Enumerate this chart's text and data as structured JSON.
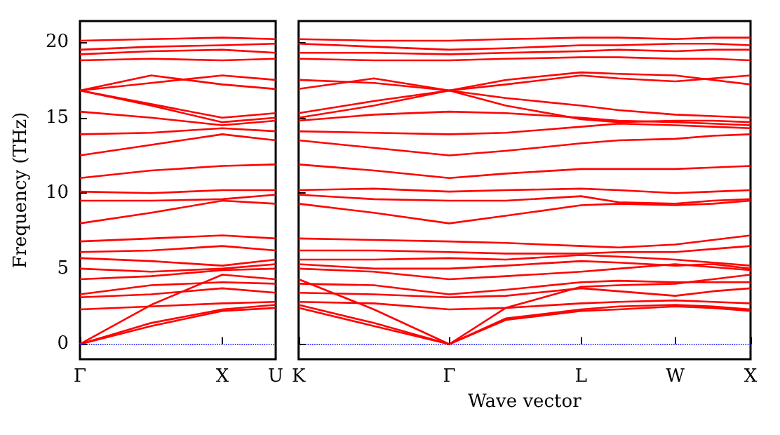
{
  "chart_data": [
    {
      "type": "line",
      "ylabel": "Frequency (THz)",
      "categories": [
        "Γ",
        null,
        null,
        null,
        null,
        null,
        null,
        null,
        "X",
        null,
        null,
        "U"
      ],
      "ylim": [
        -1,
        21.4
      ],
      "yticks": [
        0,
        5,
        10,
        15,
        20
      ],
      "grid": false,
      "marker": "none",
      "line_style": "solid",
      "ref_lines": [
        {
          "axis": "y",
          "value": 0,
          "color": "#0000ff",
          "line_style": "dotted"
        }
      ],
      "series": [
        {
          "color": "#ff0000",
          "values": [
            0,
            null,
            null,
            null,
            1.2,
            null,
            null,
            null,
            2.2,
            null,
            null,
            2.4
          ]
        },
        {
          "color": "#ff0000",
          "values": [
            0,
            null,
            null,
            null,
            1.4,
            null,
            null,
            null,
            2.3,
            null,
            null,
            2.6
          ]
        },
        {
          "color": "#ff0000",
          "values": [
            0,
            null,
            null,
            null,
            2.6,
            null,
            null,
            null,
            4.6,
            null,
            null,
            4.3
          ]
        },
        {
          "color": "#ff0000",
          "values": [
            2.3,
            null,
            null,
            null,
            2.5,
            null,
            null,
            null,
            2.7,
            null,
            null,
            2.8
          ]
        },
        {
          "color": "#ff0000",
          "values": [
            3.1,
            null,
            null,
            null,
            3.3,
            null,
            null,
            null,
            3.7,
            null,
            null,
            3.4
          ]
        },
        {
          "color": "#ff0000",
          "values": [
            3.3,
            null,
            null,
            null,
            3.9,
            null,
            null,
            null,
            4.1,
            null,
            null,
            4.0
          ]
        },
        {
          "color": "#ff0000",
          "values": [
            4.3,
            null,
            null,
            null,
            4.5,
            null,
            null,
            null,
            4.9,
            null,
            null,
            5.0
          ]
        },
        {
          "color": "#ff0000",
          "values": [
            5.0,
            null,
            null,
            null,
            4.8,
            null,
            null,
            null,
            5.0,
            null,
            null,
            5.3
          ]
        },
        {
          "color": "#ff0000",
          "values": [
            5.7,
            null,
            null,
            null,
            5.5,
            null,
            null,
            null,
            5.2,
            null,
            null,
            5.6
          ]
        },
        {
          "color": "#ff0000",
          "values": [
            6.1,
            null,
            null,
            null,
            6.2,
            null,
            null,
            null,
            6.5,
            null,
            null,
            6.2
          ]
        },
        {
          "color": "#ff0000",
          "values": [
            6.8,
            null,
            null,
            null,
            7.0,
            null,
            null,
            null,
            7.2,
            null,
            null,
            7.0
          ]
        },
        {
          "color": "#ff0000",
          "values": [
            8.0,
            null,
            null,
            null,
            8.7,
            null,
            null,
            null,
            9.5,
            null,
            null,
            9.3
          ]
        },
        {
          "color": "#ff0000",
          "values": [
            9.5,
            null,
            null,
            null,
            9.5,
            null,
            null,
            null,
            9.6,
            null,
            null,
            9.9
          ]
        },
        {
          "color": "#ff0000",
          "values": [
            10.1,
            null,
            null,
            null,
            10.0,
            null,
            null,
            null,
            10.2,
            null,
            null,
            10.2
          ]
        },
        {
          "color": "#ff0000",
          "values": [
            11.0,
            null,
            null,
            null,
            11.5,
            null,
            null,
            null,
            11.8,
            null,
            null,
            11.9
          ]
        },
        {
          "color": "#ff0000",
          "values": [
            12.5,
            null,
            null,
            null,
            13.2,
            null,
            null,
            null,
            13.9,
            null,
            null,
            13.5
          ]
        },
        {
          "color": "#ff0000",
          "values": [
            13.9,
            null,
            null,
            null,
            14.0,
            null,
            null,
            null,
            14.3,
            null,
            null,
            14.1
          ]
        },
        {
          "color": "#ff0000",
          "values": [
            15.4,
            null,
            null,
            null,
            15.0,
            null,
            null,
            null,
            14.5,
            null,
            null,
            14.8
          ]
        },
        {
          "color": "#ff0000",
          "values": [
            16.8,
            null,
            null,
            null,
            15.8,
            null,
            null,
            null,
            14.7,
            null,
            null,
            15.0
          ]
        },
        {
          "color": "#ff0000",
          "values": [
            16.8,
            null,
            null,
            null,
            15.9,
            null,
            null,
            null,
            15.0,
            null,
            null,
            15.3
          ]
        },
        {
          "color": "#ff0000",
          "values": [
            16.8,
            null,
            null,
            null,
            17.3,
            null,
            null,
            null,
            17.8,
            null,
            null,
            17.5
          ]
        },
        {
          "color": "#ff0000",
          "values": [
            16.8,
            null,
            null,
            null,
            17.8,
            null,
            null,
            null,
            17.2,
            null,
            null,
            16.9
          ]
        },
        {
          "color": "#ff0000",
          "values": [
            18.8,
            null,
            null,
            null,
            18.9,
            null,
            null,
            null,
            18.8,
            null,
            null,
            18.9
          ]
        },
        {
          "color": "#ff0000",
          "values": [
            19.2,
            null,
            null,
            null,
            19.4,
            null,
            null,
            null,
            19.5,
            null,
            null,
            19.3
          ]
        },
        {
          "color": "#ff0000",
          "values": [
            19.5,
            null,
            null,
            null,
            19.7,
            null,
            null,
            null,
            19.8,
            null,
            null,
            19.9
          ]
        },
        {
          "color": "#ff0000",
          "values": [
            20.1,
            null,
            null,
            null,
            20.2,
            null,
            null,
            null,
            20.3,
            null,
            null,
            20.2
          ]
        }
      ]
    },
    {
      "type": "line",
      "xlabel": "Wave vector",
      "categories": [
        "K",
        null,
        null,
        null,
        null,
        null,
        null,
        null,
        "Γ",
        null,
        null,
        null,
        null,
        null,
        null,
        "L",
        null,
        null,
        null,
        null,
        "W",
        null,
        null,
        null,
        "X"
      ],
      "ylim": [
        -1,
        21.4
      ],
      "yticks": [
        {
          "value": 0,
          "label": null
        },
        {
          "value": 5,
          "label": null
        },
        {
          "value": 10,
          "label": null
        },
        {
          "value": 15,
          "label": null
        },
        {
          "value": 20,
          "label": null
        }
      ],
      "tick_labels": "x",
      "grid": false,
      "marker": "none",
      "line_style": "solid",
      "ref_lines": [
        {
          "axis": "y",
          "value": 0,
          "color": "#0000ff",
          "line_style": "dotted"
        }
      ],
      "series": [
        {
          "color": "#ff0000",
          "values": [
            2.4,
            null,
            null,
            null,
            1.2,
            null,
            null,
            null,
            0,
            null,
            null,
            1.6,
            null,
            null,
            null,
            2.2,
            null,
            2.3,
            null,
            null,
            2.5,
            null,
            2.4,
            null,
            2.2
          ]
        },
        {
          "color": "#ff0000",
          "values": [
            2.6,
            null,
            null,
            null,
            1.4,
            null,
            null,
            null,
            0,
            null,
            null,
            1.7,
            null,
            null,
            null,
            2.3,
            null,
            2.5,
            null,
            null,
            2.6,
            null,
            2.5,
            null,
            2.3
          ]
        },
        {
          "color": "#ff0000",
          "values": [
            4.3,
            null,
            null,
            null,
            2.3,
            null,
            null,
            null,
            0,
            null,
            null,
            2.4,
            null,
            null,
            null,
            3.8,
            null,
            3.9,
            null,
            null,
            4.0,
            null,
            4.3,
            null,
            4.6
          ]
        },
        {
          "color": "#ff0000",
          "values": [
            2.8,
            null,
            null,
            null,
            2.7,
            null,
            null,
            null,
            2.3,
            null,
            null,
            2.4,
            null,
            null,
            null,
            2.7,
            null,
            2.8,
            null,
            null,
            2.9,
            null,
            2.8,
            null,
            2.7
          ]
        },
        {
          "color": "#ff0000",
          "values": [
            3.4,
            null,
            null,
            null,
            3.3,
            null,
            null,
            null,
            3.1,
            null,
            null,
            3.2,
            null,
            null,
            null,
            3.7,
            null,
            3.5,
            null,
            null,
            3.2,
            null,
            3.5,
            null,
            3.7
          ]
        },
        {
          "color": "#ff0000",
          "values": [
            4.0,
            null,
            null,
            null,
            3.9,
            null,
            null,
            null,
            3.3,
            null,
            null,
            3.6,
            null,
            null,
            null,
            4.1,
            null,
            4.2,
            null,
            null,
            4.1,
            null,
            4.1,
            null,
            4.1
          ]
        },
        {
          "color": "#ff0000",
          "values": [
            5.0,
            null,
            null,
            null,
            4.8,
            null,
            null,
            null,
            4.3,
            null,
            null,
            4.5,
            null,
            null,
            null,
            4.8,
            null,
            5.0,
            null,
            null,
            5.3,
            null,
            5.1,
            null,
            4.9
          ]
        },
        {
          "color": "#ff0000",
          "values": [
            5.3,
            null,
            null,
            null,
            5.0,
            null,
            null,
            null,
            5.0,
            null,
            null,
            5.2,
            null,
            null,
            null,
            5.5,
            null,
            5.4,
            null,
            null,
            5.2,
            null,
            5.3,
            null,
            5.0
          ]
        },
        {
          "color": "#ff0000",
          "values": [
            5.6,
            null,
            null,
            null,
            5.6,
            null,
            null,
            null,
            5.7,
            null,
            null,
            5.6,
            null,
            null,
            null,
            5.9,
            null,
            5.8,
            null,
            null,
            5.6,
            null,
            5.4,
            null,
            5.2
          ]
        },
        {
          "color": "#ff0000",
          "values": [
            6.2,
            null,
            null,
            null,
            6.2,
            null,
            null,
            null,
            6.1,
            null,
            null,
            6.0,
            null,
            null,
            null,
            6.0,
            null,
            6.1,
            null,
            null,
            6.1,
            null,
            6.3,
            null,
            6.5
          ]
        },
        {
          "color": "#ff0000",
          "values": [
            7.0,
            null,
            null,
            null,
            6.9,
            null,
            null,
            null,
            6.8,
            null,
            null,
            6.7,
            null,
            null,
            null,
            6.5,
            null,
            6.4,
            null,
            null,
            6.6,
            null,
            6.9,
            null,
            7.2
          ]
        },
        {
          "color": "#ff0000",
          "values": [
            9.3,
            null,
            null,
            null,
            8.7,
            null,
            null,
            null,
            8.0,
            null,
            null,
            8.5,
            null,
            null,
            null,
            9.2,
            null,
            9.3,
            null,
            null,
            9.2,
            null,
            9.3,
            null,
            9.5
          ]
        },
        {
          "color": "#ff0000",
          "values": [
            9.9,
            null,
            null,
            null,
            9.6,
            null,
            null,
            null,
            9.5,
            null,
            null,
            9.5,
            null,
            null,
            null,
            9.8,
            null,
            9.4,
            null,
            null,
            9.3,
            null,
            9.5,
            null,
            9.6
          ]
        },
        {
          "color": "#ff0000",
          "values": [
            10.2,
            null,
            null,
            null,
            10.3,
            null,
            null,
            null,
            10.1,
            null,
            null,
            10.2,
            null,
            null,
            null,
            10.3,
            null,
            10.2,
            null,
            null,
            10.0,
            null,
            10.1,
            null,
            10.2
          ]
        },
        {
          "color": "#ff0000",
          "values": [
            11.9,
            null,
            null,
            null,
            11.5,
            null,
            null,
            null,
            11.0,
            null,
            null,
            11.3,
            null,
            null,
            null,
            11.6,
            null,
            11.6,
            null,
            null,
            11.6,
            null,
            11.7,
            null,
            11.8
          ]
        },
        {
          "color": "#ff0000",
          "values": [
            13.5,
            null,
            null,
            null,
            13.0,
            null,
            null,
            null,
            12.5,
            null,
            null,
            12.8,
            null,
            null,
            null,
            13.3,
            null,
            13.5,
            null,
            null,
            13.6,
            null,
            13.8,
            null,
            13.9
          ]
        },
        {
          "color": "#ff0000",
          "values": [
            14.1,
            null,
            null,
            null,
            14.0,
            null,
            null,
            null,
            13.9,
            null,
            null,
            14.0,
            null,
            null,
            null,
            14.4,
            null,
            14.6,
            null,
            null,
            14.5,
            null,
            14.4,
            null,
            14.3
          ]
        },
        {
          "color": "#ff0000",
          "values": [
            14.8,
            null,
            null,
            null,
            15.2,
            null,
            null,
            null,
            15.4,
            null,
            null,
            15.3,
            null,
            null,
            null,
            15.0,
            null,
            14.8,
            null,
            null,
            14.7,
            null,
            14.6,
            null,
            14.5
          ]
        },
        {
          "color": "#ff0000",
          "values": [
            15.0,
            null,
            null,
            null,
            15.8,
            null,
            null,
            null,
            16.8,
            null,
            null,
            15.8,
            null,
            null,
            null,
            14.9,
            null,
            14.7,
            null,
            null,
            14.8,
            null,
            14.8,
            null,
            14.7
          ]
        },
        {
          "color": "#ff0000",
          "values": [
            15.3,
            null,
            null,
            null,
            16.1,
            null,
            null,
            null,
            16.8,
            null,
            null,
            16.3,
            null,
            null,
            null,
            15.8,
            null,
            15.5,
            null,
            null,
            15.2,
            null,
            15.1,
            null,
            15.0
          ]
        },
        {
          "color": "#ff0000",
          "values": [
            17.5,
            null,
            null,
            null,
            17.3,
            null,
            null,
            null,
            16.8,
            null,
            null,
            17.2,
            null,
            null,
            null,
            17.8,
            null,
            17.6,
            null,
            null,
            17.4,
            null,
            17.6,
            null,
            17.8
          ]
        },
        {
          "color": "#ff0000",
          "values": [
            16.9,
            null,
            null,
            null,
            17.6,
            null,
            null,
            null,
            16.8,
            null,
            null,
            17.5,
            null,
            null,
            null,
            18.0,
            null,
            17.9,
            null,
            null,
            17.8,
            null,
            17.5,
            null,
            17.2
          ]
        },
        {
          "color": "#ff0000",
          "values": [
            18.9,
            null,
            null,
            null,
            18.8,
            null,
            null,
            null,
            18.8,
            null,
            null,
            18.9,
            null,
            null,
            null,
            19.0,
            null,
            19.0,
            null,
            null,
            18.9,
            null,
            18.9,
            null,
            18.8
          ]
        },
        {
          "color": "#ff0000",
          "values": [
            19.3,
            null,
            null,
            null,
            19.3,
            null,
            null,
            null,
            19.2,
            null,
            null,
            19.3,
            null,
            null,
            null,
            19.4,
            null,
            19.5,
            null,
            null,
            19.4,
            null,
            19.5,
            null,
            19.5
          ]
        },
        {
          "color": "#ff0000",
          "values": [
            19.9,
            null,
            null,
            null,
            19.7,
            null,
            null,
            null,
            19.5,
            null,
            null,
            19.6,
            null,
            null,
            null,
            19.8,
            null,
            19.8,
            null,
            null,
            19.9,
            null,
            19.9,
            null,
            19.8
          ]
        },
        {
          "color": "#ff0000",
          "values": [
            20.2,
            null,
            null,
            null,
            20.1,
            null,
            null,
            null,
            20.1,
            null,
            null,
            20.2,
            null,
            null,
            null,
            20.3,
            null,
            20.3,
            null,
            null,
            20.2,
            null,
            20.3,
            null,
            20.3
          ]
        }
      ]
    }
  ]
}
